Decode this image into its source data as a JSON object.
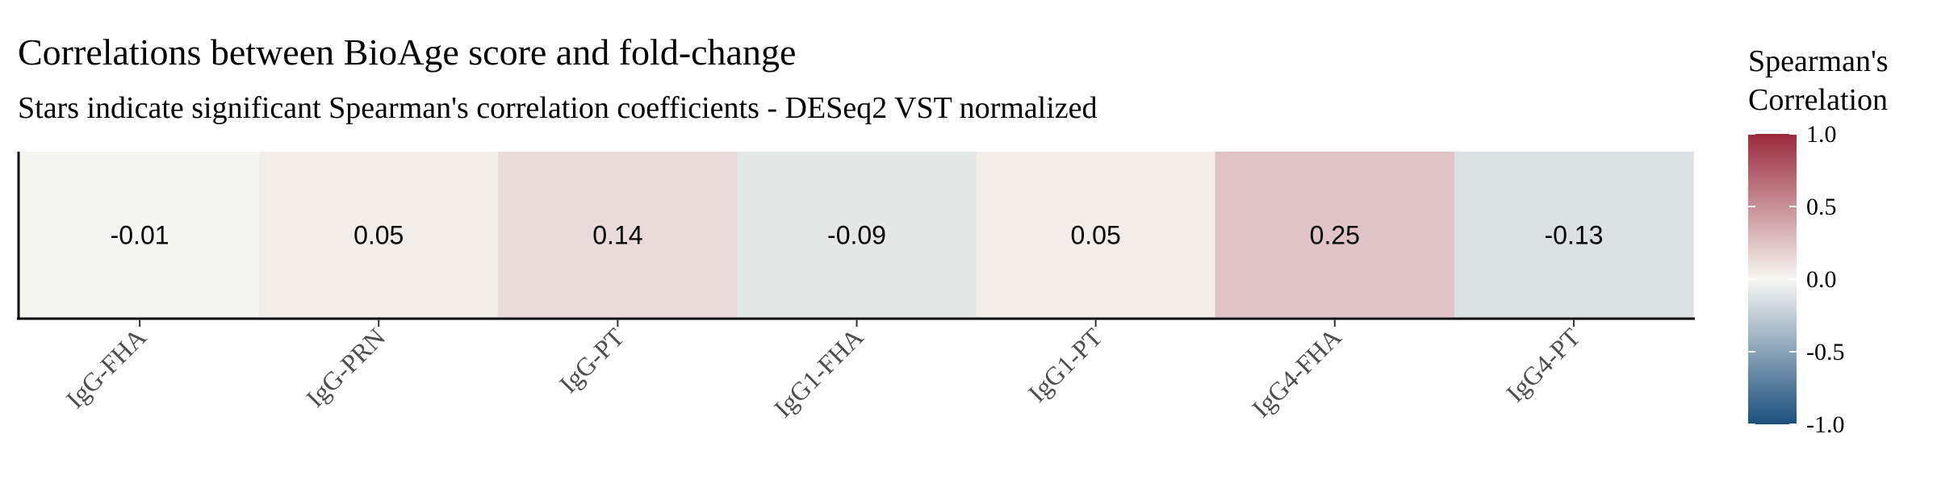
{
  "title": "Correlations between BioAge score and fold-change",
  "subtitle": "Stars indicate significant Spearman's correlation coefficients - DESeq2 VST normalized",
  "chart_data": {
    "type": "heatmap",
    "categories": [
      "IgG-FHA",
      "IgG-PRN",
      "IgG-PT",
      "IgG1-FHA",
      "IgG1-PT",
      "IgG4-FHA",
      "IgG4-PT"
    ],
    "values": [
      -0.01,
      0.05,
      0.14,
      -0.09,
      0.05,
      0.25,
      -0.13
    ],
    "cell_labels": [
      "-0.01",
      "0.05",
      "0.14",
      "-0.09",
      "0.05",
      "0.25",
      "-0.13"
    ],
    "legend": {
      "title_lines": [
        "Spearman's",
        "Correlation"
      ],
      "range": [
        -1.0,
        1.0
      ],
      "ticks": [
        1.0,
        0.5,
        0.0,
        -0.5,
        -1.0
      ],
      "tick_labels": [
        "1.0",
        "0.5",
        "0.0",
        "-0.5",
        "-1.0"
      ],
      "position": "right"
    },
    "colors": {
      "low": "#1b4f7c",
      "mid": "#f7f7f2",
      "high": "#9a2a3d"
    }
  }
}
